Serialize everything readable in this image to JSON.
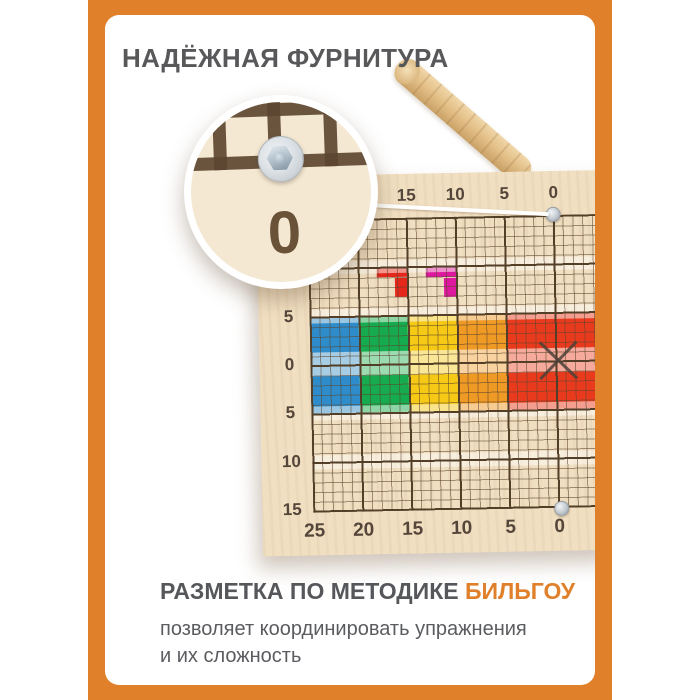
{
  "texts": {
    "top_title": "НАДЁЖНАЯ ФУРНИТУРА",
    "bottom_heading_gray": "РАЗМЕТКА ПО МЕТОДИКЕ",
    "bottom_heading_orange": "БИЛЬГОУ",
    "bottom_body_line1": "позволяет координировать упражнения",
    "bottom_body_line2": "и их сложность"
  },
  "colors": {
    "frame_orange": "#E0802B",
    "title_gray": "#58585A",
    "wood_light": "#F1DFC1",
    "grid_brown": "#533E27"
  },
  "board": {
    "top_axis_labels": [
      "15",
      "10",
      "5",
      "0"
    ],
    "left_axis_labels": [
      "5",
      "0",
      "5",
      "10",
      "15"
    ],
    "bottom_axis_labels": [
      "25",
      "20",
      "15",
      "10",
      "5",
      "0"
    ],
    "magnifier_label": "0",
    "blocks": [
      {
        "name": "blue",
        "color": "#2E8CCB",
        "col": 0,
        "span": 1
      },
      {
        "name": "green",
        "color": "#16AB4E",
        "col": 1,
        "span": 1
      },
      {
        "name": "yellow",
        "color": "#F5C915",
        "col": 2,
        "span": 1
      },
      {
        "name": "orange",
        "color": "#F09A26",
        "col": 3,
        "span": 1
      },
      {
        "name": "red",
        "color": "#E93A1E",
        "col": 4,
        "span": 2
      }
    ],
    "marks": [
      {
        "name": "red-seven-mark",
        "color": "#E5261B"
      },
      {
        "name": "magenta-seven-mark",
        "color": "#DE189E"
      }
    ]
  }
}
